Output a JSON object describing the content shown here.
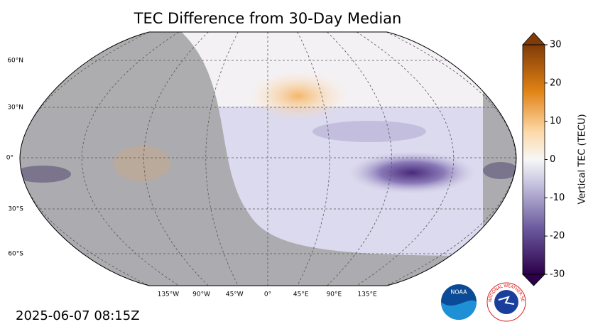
{
  "title": "TEC Difference from 30-Day Median",
  "lat_labels": [
    "60°N",
    "30°N",
    "0°",
    "30°S",
    "60°S"
  ],
  "lon_labels": [
    "135°W",
    "90°W",
    "45°W",
    "0°",
    "45°E",
    "90°E",
    "135°E"
  ],
  "colorbar": {
    "label": "Vertical TEC (TECU)",
    "lim": [
      -30,
      30
    ],
    "ticks": [
      30,
      20,
      10,
      0,
      -10,
      -20,
      -30
    ]
  },
  "timestamp": "2025-06-07 08:15Z",
  "logos": {
    "noaa": "NOAA",
    "nws": "NATIONAL WEATHER SERVICE"
  }
}
